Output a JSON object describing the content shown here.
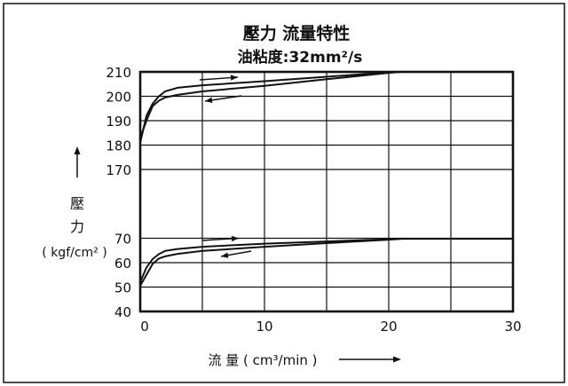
{
  "chart_data": {
    "type": "line",
    "title": "壓力 流量特性",
    "subtitle": "油粘度:32mm²/s",
    "xlabel": "流 量 ( cm³/min )",
    "ylabel": {
      "line1": "壓",
      "line2": "力",
      "unit": "( kgf/cm² )"
    },
    "xlim": [
      0,
      30
    ],
    "x_ticks": [
      "0",
      "10",
      "20",
      "30"
    ],
    "y_ticks": [
      "40",
      "50",
      "60",
      "70",
      "170",
      "180",
      "190",
      "200",
      "210"
    ],
    "grid": true,
    "colors": {
      "stroke": "#111111",
      "background": "#ffffff"
    },
    "series": [
      {
        "x": [
          0,
          0.5,
          1,
          1.5,
          2,
          3,
          5,
          10,
          15,
          20,
          21
        ],
        "y": [
          181,
          192,
          197,
          200,
          202,
          203.5,
          204.5,
          206.2,
          208,
          209.8,
          210
        ]
      },
      {
        "x": [
          21,
          20,
          15,
          10,
          5,
          3,
          2,
          1.5,
          1,
          0.5,
          0
        ],
        "y": [
          210,
          209.6,
          207,
          204.3,
          202,
          200.6,
          199.5,
          198.2,
          196,
          190,
          183
        ]
      },
      {
        "x": [
          0,
          0.5,
          1,
          1.5,
          2,
          3,
          5,
          10,
          15,
          20,
          21,
          30
        ],
        "y": [
          52,
          58,
          61.5,
          63.5,
          64.8,
          65.6,
          66.5,
          67.8,
          68.7,
          69.6,
          69.8,
          69.8
        ]
      },
      {
        "x": [
          21,
          20,
          15,
          10,
          5,
          3,
          2,
          1.5,
          1,
          0.5,
          0
        ],
        "y": [
          69.8,
          69.4,
          68,
          66.5,
          64.8,
          63.6,
          62.6,
          61.7,
          59.5,
          55,
          50.5
        ]
      }
    ]
  }
}
